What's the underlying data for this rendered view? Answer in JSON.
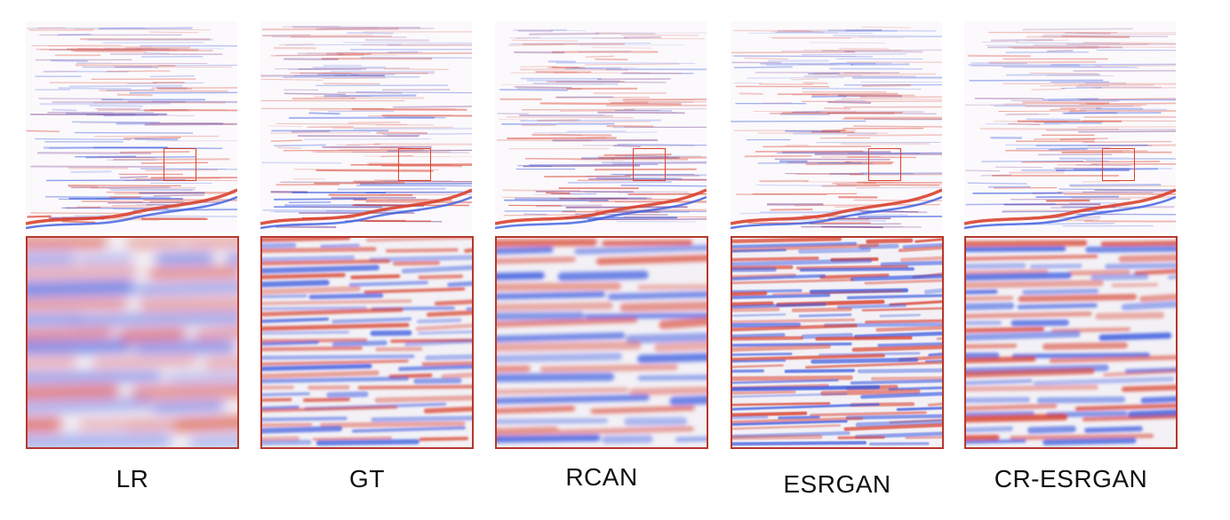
{
  "figure": {
    "panels": [
      {
        "id": "lr",
        "label": "LR"
      },
      {
        "id": "gt",
        "label": "GT"
      },
      {
        "id": "rcan",
        "label": "RCAN"
      },
      {
        "id": "esrgan",
        "label": "ESRGAN"
      },
      {
        "id": "cr-esrgan",
        "label": "CR-ESRGAN"
      }
    ]
  },
  "colors": {
    "positive": "#d9432f",
    "negative": "#3a5be0",
    "box": "#d9432f",
    "frame": "#b5382c"
  }
}
